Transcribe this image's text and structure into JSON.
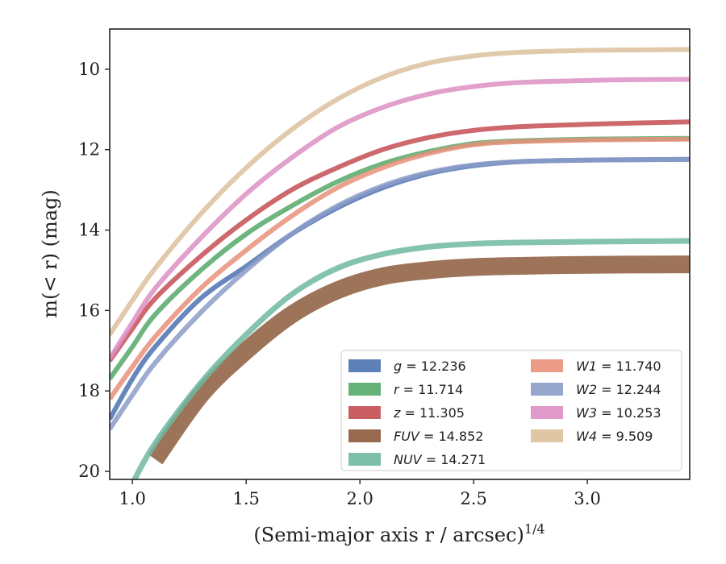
{
  "chart_data": {
    "type": "line",
    "xlabel": "(Semi-major axis r / arcsec)",
    "xlabel_sup": "1/4",
    "ylabel": "m(< r) (mag)",
    "xlim": [
      0.9,
      3.45
    ],
    "ylim": [
      20.2,
      9.0
    ],
    "y_inverted": true,
    "grid": false,
    "legend_position": "lower-right",
    "legend_columns": 2,
    "x_ticks": [
      1.0,
      1.5,
      2.0,
      2.5,
      3.0
    ],
    "x_tick_labels": [
      "1.0",
      "1.5",
      "2.0",
      "2.5",
      "3.0"
    ],
    "y_ticks": [
      10,
      12,
      14,
      16,
      18,
      20
    ],
    "y_tick_labels": [
      "10",
      "12",
      "14",
      "16",
      "18",
      "20"
    ],
    "series": [
      {
        "name": "g = 12.236",
        "var": "g",
        "eq": " = 12.236",
        "color": "#4c72b0",
        "band": 0.06,
        "x": [
          0.9,
          1.0,
          1.1,
          1.3,
          1.5,
          1.7,
          1.9,
          2.1,
          2.3,
          2.5,
          2.7,
          3.0,
          3.2,
          3.45
        ],
        "y": [
          18.7,
          17.7,
          16.9,
          15.7,
          14.9,
          14.1,
          13.45,
          12.95,
          12.6,
          12.4,
          12.3,
          12.26,
          12.25,
          12.24
        ]
      },
      {
        "name": "r = 11.714",
        "var": "r",
        "eq": " = 11.714",
        "color": "#55a868",
        "band": 0.06,
        "x": [
          0.9,
          1.0,
          1.1,
          1.3,
          1.5,
          1.7,
          1.9,
          2.1,
          2.3,
          2.5,
          2.7,
          3.0,
          3.2,
          3.45
        ],
        "y": [
          17.7,
          16.9,
          16.1,
          15.0,
          14.1,
          13.4,
          12.8,
          12.35,
          12.05,
          11.85,
          11.78,
          11.74,
          11.73,
          11.72
        ]
      },
      {
        "name": "z = 11.305",
        "var": "z",
        "eq": " = 11.305",
        "color": "#c44e52",
        "band": 0.06,
        "x": [
          0.9,
          1.0,
          1.1,
          1.3,
          1.5,
          1.7,
          1.9,
          2.1,
          2.3,
          2.5,
          2.7,
          3.0,
          3.2,
          3.45
        ],
        "y": [
          17.25,
          16.45,
          15.7,
          14.65,
          13.75,
          13.0,
          12.45,
          12.0,
          11.7,
          11.52,
          11.43,
          11.37,
          11.34,
          11.31
        ]
      },
      {
        "name": "FUV = 14.852",
        "var": "FUV",
        "eq": " = 14.852",
        "color": "#8c5a3c",
        "band": 0.22,
        "x": [
          1.1,
          1.3,
          1.5,
          1.7,
          1.9,
          2.1,
          2.3,
          2.5,
          2.7,
          2.9,
          3.1,
          3.3,
          3.45
        ],
        "y": [
          19.7,
          18.1,
          17.0,
          16.1,
          15.5,
          15.15,
          15.0,
          14.92,
          14.89,
          14.87,
          14.86,
          14.855,
          14.852
        ]
      },
      {
        "name": "NUV = 14.271",
        "var": "NUV",
        "eq": " = 14.271",
        "color": "#6fb8a0",
        "band": 0.07,
        "x": [
          1.0,
          1.1,
          1.3,
          1.5,
          1.7,
          1.9,
          2.1,
          2.3,
          2.5,
          2.7,
          3.0,
          3.2,
          3.45
        ],
        "y": [
          20.3,
          19.3,
          17.8,
          16.6,
          15.6,
          14.95,
          14.6,
          14.42,
          14.34,
          14.31,
          14.29,
          14.28,
          14.27
        ]
      },
      {
        "name": "W1 = 11.740",
        "var": "W1",
        "eq": " = 11.740",
        "color": "#e8917a",
        "band": 0.06,
        "x": [
          0.9,
          1.0,
          1.1,
          1.3,
          1.5,
          1.7,
          1.9,
          2.1,
          2.3,
          2.5,
          2.7,
          3.0,
          3.2,
          3.45
        ],
        "y": [
          18.2,
          17.4,
          16.65,
          15.45,
          14.5,
          13.65,
          12.95,
          12.45,
          12.1,
          11.88,
          11.8,
          11.76,
          11.75,
          11.74
        ]
      },
      {
        "name": "W2 = 12.244",
        "var": "W2",
        "eq": " = 12.244",
        "color": "#8c9cc8",
        "band": 0.06,
        "x": [
          0.9,
          1.0,
          1.1,
          1.3,
          1.5,
          1.7,
          1.9,
          2.1,
          2.3,
          2.5,
          2.7,
          3.0,
          3.2,
          3.45
        ],
        "y": [
          18.95,
          18.1,
          17.3,
          16.05,
          15.0,
          14.1,
          13.4,
          12.9,
          12.57,
          12.38,
          12.3,
          12.26,
          12.25,
          12.244
        ]
      },
      {
        "name": "W3 = 10.253",
        "var": "W3",
        "eq": " = 10.253",
        "color": "#dd8fc4",
        "band": 0.06,
        "x": [
          0.9,
          1.0,
          1.1,
          1.3,
          1.5,
          1.7,
          1.9,
          2.1,
          2.3,
          2.5,
          2.7,
          3.0,
          3.2,
          3.45
        ],
        "y": [
          17.2,
          16.3,
          15.45,
          14.2,
          13.1,
          12.2,
          11.45,
          10.95,
          10.62,
          10.43,
          10.33,
          10.28,
          10.26,
          10.253
        ]
      },
      {
        "name": "W4 = 9.509",
        "var": "W4",
        "eq": " = 9.509",
        "color": "#dcc19c",
        "band": 0.06,
        "x": [
          0.9,
          1.0,
          1.1,
          1.3,
          1.5,
          1.7,
          1.9,
          2.1,
          2.3,
          2.5,
          2.7,
          3.0,
          3.2,
          3.45
        ],
        "y": [
          16.6,
          15.75,
          14.95,
          13.6,
          12.45,
          11.5,
          10.75,
          10.2,
          9.85,
          9.67,
          9.58,
          9.53,
          9.52,
          9.509
        ]
      }
    ]
  }
}
